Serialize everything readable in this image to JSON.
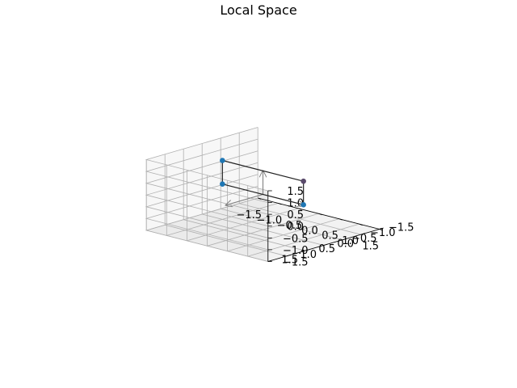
{
  "chart_data": {
    "type": "scatter3d",
    "title": "Local Space",
    "xlabel": "",
    "ylabel": "",
    "zlabel": "",
    "xlim": [
      -1.5,
      1.5
    ],
    "ylim": [
      -1.5,
      1.5
    ],
    "zlim": [
      -1.5,
      1.5
    ],
    "ticks": {
      "x": [
        "−1.5",
        "−1.0",
        "−0.5",
        "0.0",
        "0.5",
        "1.0",
        "1.5"
      ],
      "y": [
        "−1.5",
        "−1.0",
        "−0.5",
        "0.0",
        "0.5",
        "1.0",
        "1.5"
      ],
      "z": [
        "−1.5",
        "−1.0",
        "−0.5",
        "0.0",
        "0.5",
        "1.0",
        "1.5"
      ]
    },
    "tick_values": [
      -1.5,
      -1.0,
      -0.5,
      0.0,
      0.5,
      1.0,
      1.5
    ],
    "grid": true,
    "points": [
      {
        "x": -1,
        "y": 0,
        "z": 0,
        "color": "#1f77b4"
      },
      {
        "x": -1,
        "y": 0,
        "z": 1,
        "color": "#1f77b4"
      },
      {
        "x": 1,
        "y": 0,
        "z": 0,
        "color": "#1f77b4"
      },
      {
        "x": 1,
        "y": 0,
        "z": 1,
        "color": "#5a4a6b"
      }
    ],
    "edges": [
      [
        0,
        1
      ],
      [
        1,
        3
      ],
      [
        3,
        2
      ],
      [
        2,
        0
      ]
    ],
    "axis_arrows": [
      {
        "from": [
          0,
          0,
          0
        ],
        "to": [
          1,
          0,
          0
        ],
        "color": "#808080"
      },
      {
        "from": [
          0,
          0,
          0
        ],
        "to": [
          0,
          1,
          0
        ],
        "color": "#808080"
      },
      {
        "from": [
          0,
          0,
          0
        ],
        "to": [
          0,
          0,
          1
        ],
        "color": "#808080"
      }
    ],
    "pane_color": "#f2f2f2"
  }
}
